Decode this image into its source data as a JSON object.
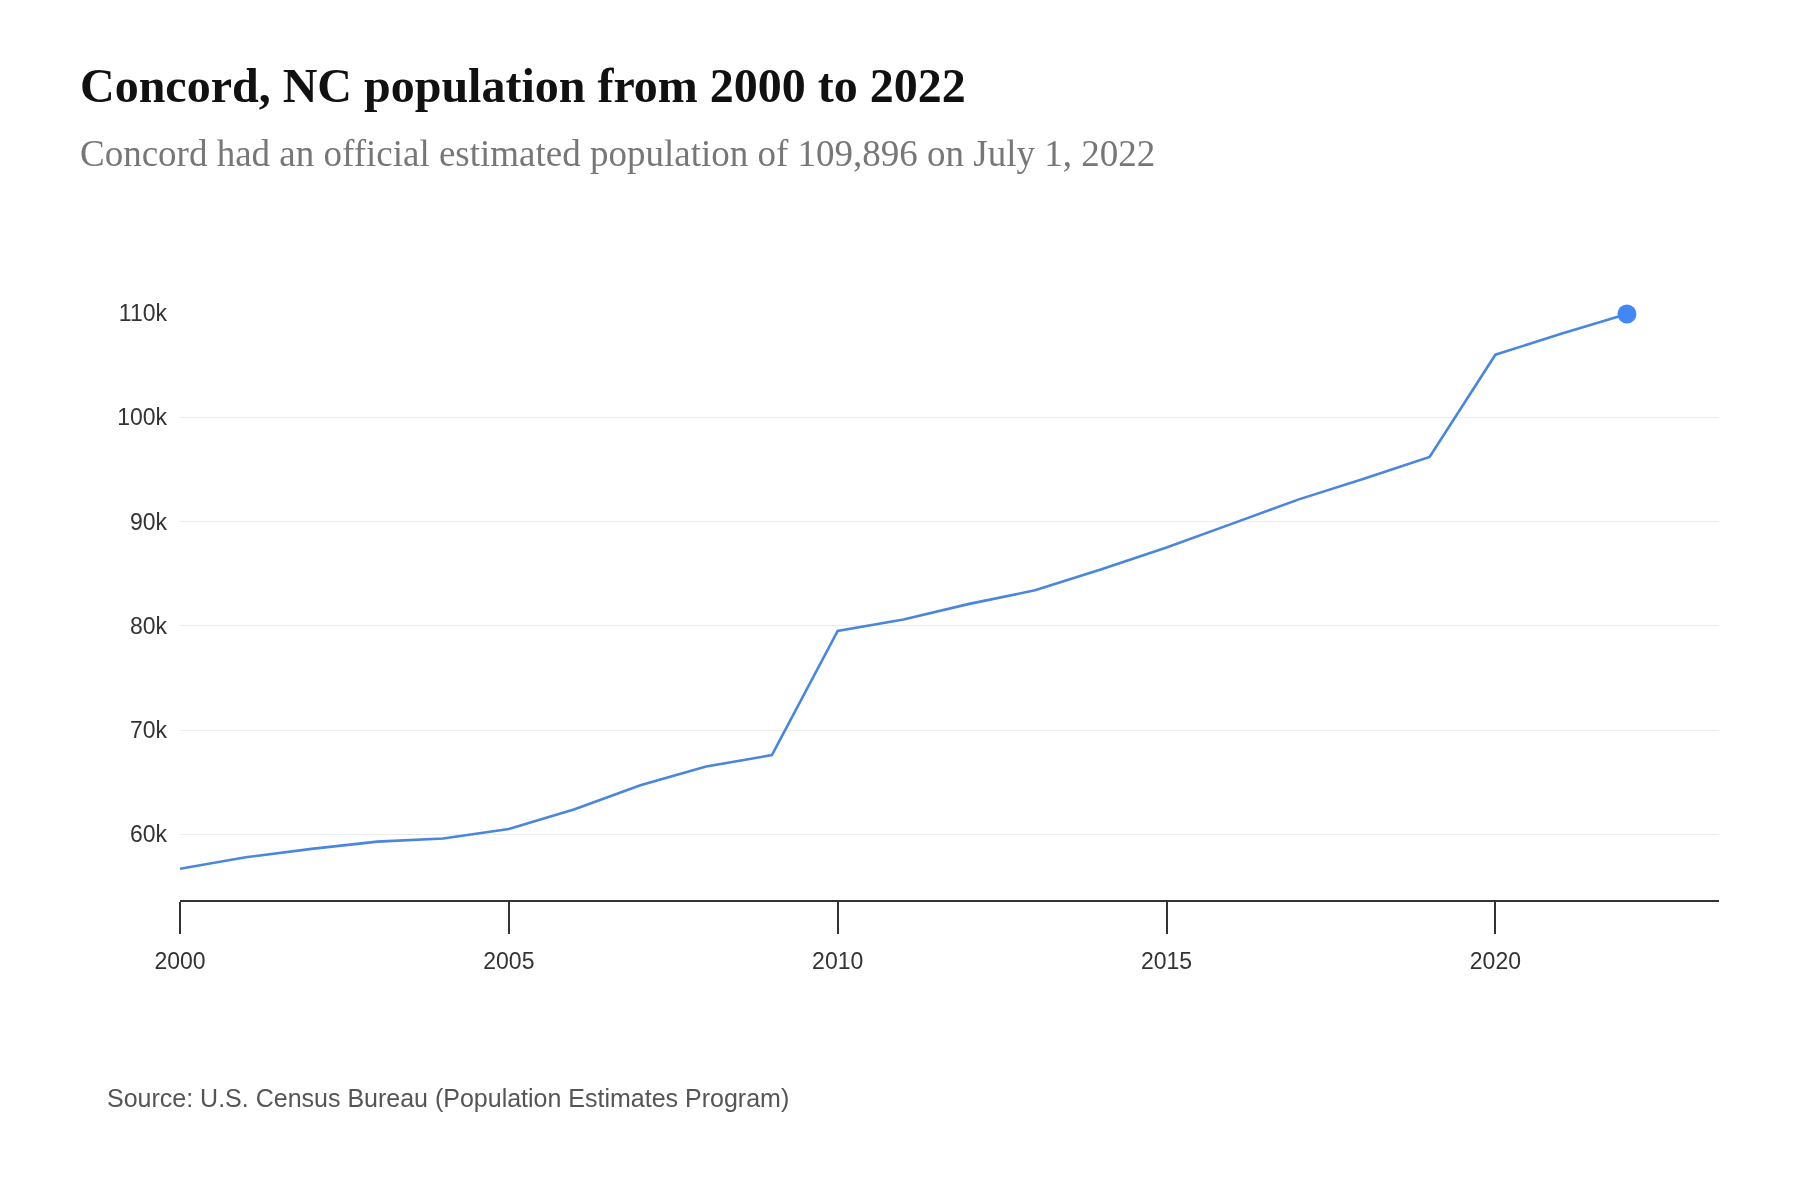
{
  "chart_data": {
    "type": "line",
    "title": "Concord, NC population from 2000 to 2022",
    "subtitle": "Concord had an official estimated population of 109,896 on July 1, 2022",
    "annotations": [
      "Source: U.S. Census Bureau (Population Estimates Program)"
    ],
    "x": [
      2000,
      2001,
      2002,
      2003,
      2004,
      2005,
      2006,
      2007,
      2008,
      2009,
      2010,
      2011,
      2012,
      2013,
      2014,
      2015,
      2016,
      2017,
      2018,
      2019,
      2020,
      2021,
      2022
    ],
    "series": [
      {
        "color": "#4a86dc",
        "values": [
          56700,
          57800,
          58600,
          59300,
          59600,
          60500,
          62400,
          64700,
          66500,
          67600,
          79500,
          80600,
          82100,
          83400,
          85400,
          87500,
          89800,
          92100,
          94100,
          96200,
          106000,
          108000,
          109900
        ]
      },
      {
        "type": "scatter",
        "x": [
          2022
        ],
        "color": "#4287f5",
        "values": [
          109900
        ]
      }
    ],
    "xlim": [
      2000,
      2023.4
    ],
    "xticks": [
      2000,
      2005,
      2010,
      2015,
      2020
    ],
    "ylim": [
      53700,
      110000
    ],
    "yticks": [
      {
        "value": 60000,
        "label": "60k"
      },
      {
        "value": 70000,
        "label": "70k"
      },
      {
        "value": 80000,
        "label": "80k"
      },
      {
        "value": 90000,
        "label": "90k"
      },
      {
        "value": 100000,
        "label": "100k"
      },
      {
        "value": 110000,
        "label": "110k"
      }
    ],
    "grid": "y"
  }
}
